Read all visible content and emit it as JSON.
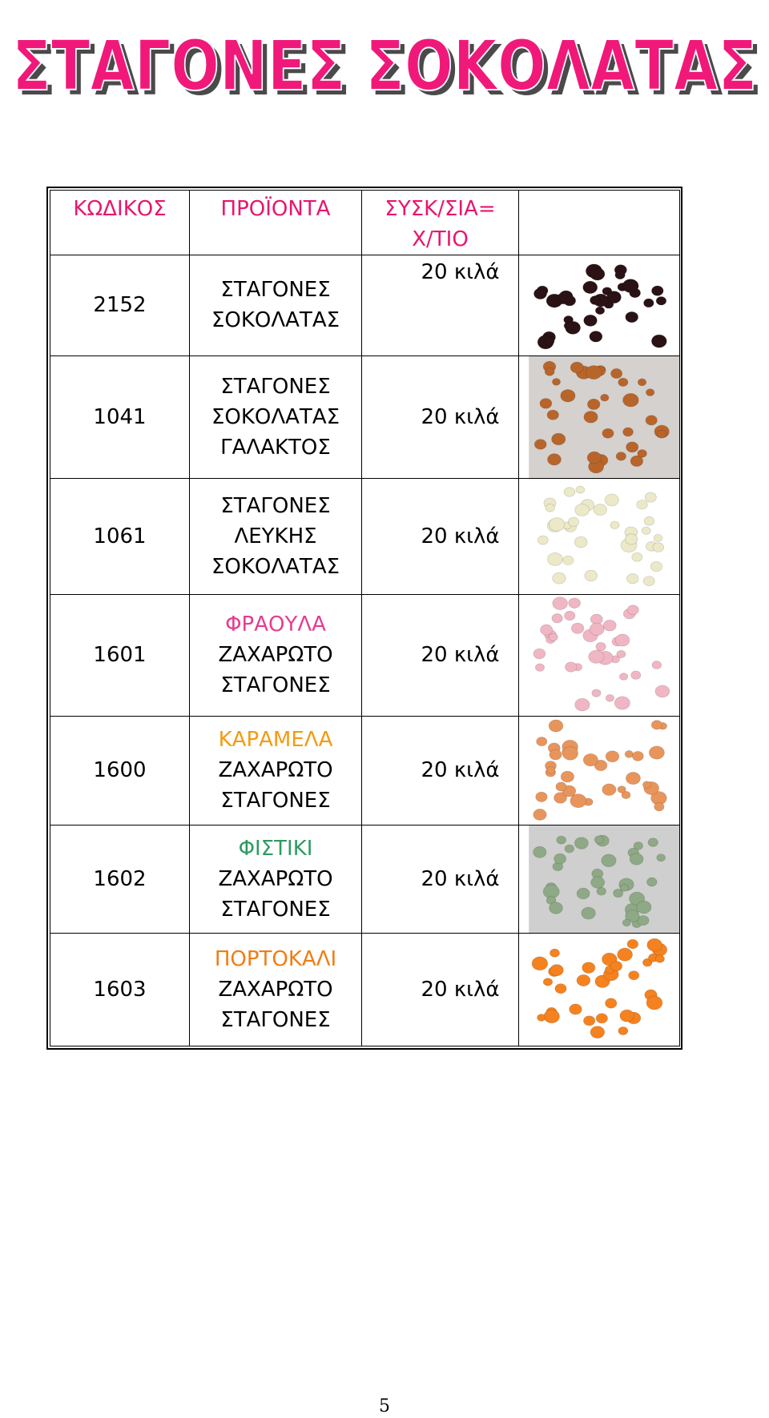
{
  "header": {
    "title": "ΣΤΑΓΟΝΕΣ ΣΟΚΟΛΑΤΑΣ",
    "title_color": "#f0197a",
    "shadow_color": "#4a4a4a"
  },
  "table": {
    "headers": {
      "code": "ΚΩΔΙΚΟΣ",
      "product": "ΠΡΟΪΟΝΤΑ",
      "packaging_line1": "ΣΥΣΚ/ΣΙΑ=",
      "packaging_line2": "Χ/ΤΙΟ"
    },
    "header_color": "#e8156f",
    "rows": [
      {
        "code": "2152",
        "flavor": "",
        "lines": [
          "ΣΤΑΓΟΝΕΣ",
          "ΣΟΚΟΛΑΤΑΣ"
        ],
        "packaging": "20 κιλά",
        "image_icon": "dark-chocolate-drops",
        "bean_color": "#2a1215",
        "bg_color": "#ffffff"
      },
      {
        "code": "1041",
        "flavor": "",
        "lines": [
          "ΣΤΑΓΟΝΕΣ",
          "ΣΟΚΟΛΑΤΑΣ",
          "ΓΑΛΑΚΤΟΣ"
        ],
        "packaging": "20 κιλά",
        "image_icon": "milk-chocolate-drops",
        "bean_color": "#b8652b",
        "bg_color": "#d4d1ce"
      },
      {
        "code": "1061",
        "flavor": "",
        "lines": [
          "ΣΤΑΓΟΝΕΣ",
          "ΛΕΥΚΗΣ",
          "ΣΟΚΟΛΑΤΑΣ"
        ],
        "packaging": "20 κιλά",
        "image_icon": "white-chocolate-drops",
        "bean_color": "#ece9c8",
        "bg_color": "#ffffff"
      },
      {
        "code": "1601",
        "flavor": "ΦΡΑΟΥΛΑ",
        "flavor_color": "#e53d8f",
        "lines": [
          "ΖΑΧΑΡΩΤΟ",
          "ΣΤΑΓΟΝΕΣ"
        ],
        "packaging": "20 κιλά",
        "image_icon": "strawberry-drops",
        "bean_color": "#f0b6c3",
        "bg_color": "#ffffff"
      },
      {
        "code": "1600",
        "flavor": "ΚΑΡΑΜΕΛΑ",
        "flavor_color": "#f39a12",
        "lines": [
          "ΖΑΧΑΡΩΤΟ",
          "ΣΤΑΓΟΝΕΣ"
        ],
        "packaging": "20 κιλά",
        "image_icon": "caramel-drops",
        "bean_color": "#e8955c",
        "bg_color": "#ffffff"
      },
      {
        "code": "1602",
        "flavor": "ΦΙΣΤΙΚΙ",
        "flavor_color": "#2f9a5f",
        "lines": [
          "ΖΑΧΑΡΩΤΟ",
          "ΣΤΑΓΟΝΕΣ"
        ],
        "packaging": "20 κιλά",
        "image_icon": "pistachio-drops",
        "bean_color": "#8ea985",
        "bg_color": "#cfcfcf"
      },
      {
        "code": "1603",
        "flavor": "ΠΟΡΤΟΚΑΛΙ",
        "flavor_color": "#f07d14",
        "lines": [
          "ΖΑΧΑΡΩΤΟ",
          "ΣΤΑΓΟΝΕΣ"
        ],
        "packaging": "20 κιλά",
        "image_icon": "orange-drops",
        "bean_color": "#f5821f",
        "bg_color": "#ffffff"
      }
    ]
  },
  "footer": {
    "page_number": "5"
  }
}
